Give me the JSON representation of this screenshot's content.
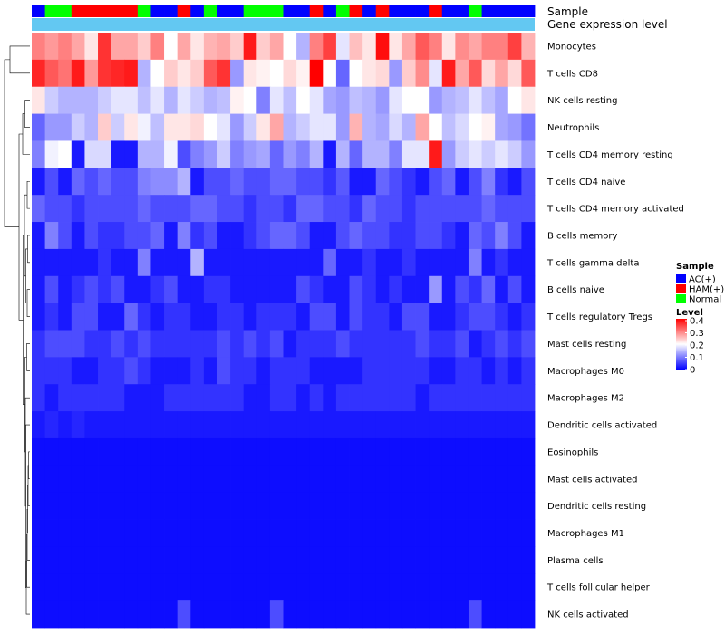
{
  "chart_data": {
    "type": "heatmap",
    "title": "",
    "clustering": "rows",
    "value_range": [
      0,
      0.4
    ],
    "annotation_labels": [
      "Sample",
      "Gene expression level"
    ],
    "annotation_colors": {
      "AC(+)": "#0000ff",
      "HAM(+)": "#ff0000",
      "Normal": "#00ff00"
    },
    "gene_expression_level_color": "#63c8f2",
    "sample_groups": [
      "AC(+)",
      "Normal",
      "Normal",
      "HAM(+)",
      "HAM(+)",
      "HAM(+)",
      "HAM(+)",
      "HAM(+)",
      "Normal",
      "AC(+)",
      "AC(+)",
      "HAM(+)",
      "AC(+)",
      "Normal",
      "AC(+)",
      "AC(+)",
      "Normal",
      "Normal",
      "Normal",
      "AC(+)",
      "AC(+)",
      "HAM(+)",
      "AC(+)",
      "Normal",
      "HAM(+)",
      "AC(+)",
      "HAM(+)",
      "AC(+)",
      "AC(+)",
      "AC(+)",
      "HAM(+)",
      "AC(+)",
      "AC(+)",
      "Normal",
      "AC(+)",
      "AC(+)",
      "AC(+)",
      "AC(+)"
    ],
    "row_labels": [
      "Monocytes",
      "T cells CD8",
      "NK cells resting",
      "Neutrophils",
      "T cells CD4 memory resting",
      "T cells CD4 naive",
      "T cells CD4 memory activated",
      "B cells memory",
      "T cells gamma delta",
      "B cells naive",
      "T cells regulatory  Tregs",
      "Mast cells resting",
      "Macrophages M0",
      "Macrophages M2",
      "Dendritic cells activated",
      "Eosinophils",
      "Mast cells activated",
      "Dendritic cells resting",
      "Macrophages M1",
      "Plasma cells",
      "T cells follicular helper",
      "NK cells activated"
    ],
    "values": [
      [
        0.3,
        0.28,
        0.3,
        0.27,
        0.22,
        0.36,
        0.27,
        0.27,
        0.24,
        0.3,
        0.2,
        0.27,
        0.22,
        0.26,
        0.27,
        0.24,
        0.38,
        0.24,
        0.27,
        0.2,
        0.14,
        0.3,
        0.35,
        0.18,
        0.25,
        0.22,
        0.39,
        0.22,
        0.27,
        0.33,
        0.3,
        0.22,
        0.29,
        0.27,
        0.3,
        0.3,
        0.35,
        0.26
      ],
      [
        0.37,
        0.33,
        0.31,
        0.38,
        0.28,
        0.36,
        0.37,
        0.38,
        0.14,
        0.2,
        0.24,
        0.22,
        0.24,
        0.33,
        0.36,
        0.12,
        0.22,
        0.21,
        0.2,
        0.23,
        0.21,
        0.4,
        0.2,
        0.08,
        0.2,
        0.22,
        0.23,
        0.12,
        0.24,
        0.29,
        0.18,
        0.38,
        0.27,
        0.33,
        0.23,
        0.27,
        0.23,
        0.33
      ],
      [
        0.22,
        0.16,
        0.14,
        0.14,
        0.14,
        0.16,
        0.18,
        0.18,
        0.15,
        0.18,
        0.14,
        0.18,
        0.16,
        0.14,
        0.15,
        0.21,
        0.2,
        0.1,
        0.18,
        0.15,
        0.2,
        0.18,
        0.13,
        0.12,
        0.15,
        0.14,
        0.12,
        0.18,
        0.2,
        0.2,
        0.12,
        0.14,
        0.15,
        0.18,
        0.15,
        0.13,
        0.2,
        0.22
      ],
      [
        0.08,
        0.12,
        0.12,
        0.16,
        0.14,
        0.24,
        0.16,
        0.22,
        0.19,
        0.15,
        0.22,
        0.22,
        0.23,
        0.2,
        0.18,
        0.12,
        0.16,
        0.22,
        0.27,
        0.14,
        0.16,
        0.18,
        0.18,
        0.12,
        0.26,
        0.14,
        0.13,
        0.17,
        0.14,
        0.27,
        0.2,
        0.15,
        0.17,
        0.2,
        0.21,
        0.13,
        0.12,
        0.09
      ],
      [
        0.1,
        0.19,
        0.2,
        0.02,
        0.17,
        0.17,
        0.02,
        0.02,
        0.14,
        0.14,
        0.19,
        0.06,
        0.1,
        0.12,
        0.16,
        0.1,
        0.12,
        0.13,
        0.08,
        0.12,
        0.1,
        0.14,
        0.02,
        0.14,
        0.08,
        0.14,
        0.14,
        0.1,
        0.18,
        0.18,
        0.38,
        0.12,
        0.16,
        0.18,
        0.16,
        0.18,
        0.16,
        0.12
      ],
      [
        0.02,
        0.06,
        0.02,
        0.08,
        0.06,
        0.08,
        0.06,
        0.06,
        0.1,
        0.11,
        0.11,
        0.14,
        0.02,
        0.06,
        0.06,
        0.08,
        0.06,
        0.06,
        0.08,
        0.08,
        0.06,
        0.06,
        0.04,
        0.07,
        0.02,
        0.02,
        0.08,
        0.06,
        0.04,
        0.02,
        0.06,
        0.08,
        0.02,
        0.06,
        0.1,
        0.04,
        0.02,
        0.06
      ],
      [
        0.08,
        0.06,
        0.06,
        0.04,
        0.06,
        0.06,
        0.06,
        0.06,
        0.08,
        0.06,
        0.06,
        0.06,
        0.08,
        0.08,
        0.06,
        0.06,
        0.04,
        0.06,
        0.06,
        0.04,
        0.08,
        0.08,
        0.06,
        0.06,
        0.04,
        0.08,
        0.06,
        0.06,
        0.04,
        0.06,
        0.06,
        0.06,
        0.06,
        0.06,
        0.08,
        0.06,
        0.06,
        0.06
      ],
      [
        0.02,
        0.1,
        0.06,
        0.02,
        0.06,
        0.04,
        0.04,
        0.06,
        0.06,
        0.08,
        0.02,
        0.1,
        0.04,
        0.06,
        0.02,
        0.02,
        0.04,
        0.06,
        0.08,
        0.08,
        0.06,
        0.02,
        0.02,
        0.06,
        0.08,
        0.06,
        0.06,
        0.04,
        0.04,
        0.06,
        0.06,
        0.04,
        0.02,
        0.08,
        0.06,
        0.1,
        0.06,
        0.02
      ],
      [
        0.02,
        0.02,
        0.02,
        0.02,
        0.02,
        0.04,
        0.02,
        0.02,
        0.1,
        0.02,
        0.02,
        0.02,
        0.14,
        0.02,
        0.02,
        0.02,
        0.02,
        0.02,
        0.02,
        0.02,
        0.02,
        0.02,
        0.08,
        0.02,
        0.02,
        0.04,
        0.02,
        0.02,
        0.04,
        0.02,
        0.02,
        0.02,
        0.02,
        0.1,
        0.02,
        0.04,
        0.02,
        0.02
      ],
      [
        0.02,
        0.06,
        0.02,
        0.04,
        0.06,
        0.04,
        0.06,
        0.02,
        0.02,
        0.04,
        0.06,
        0.02,
        0.02,
        0.04,
        0.04,
        0.02,
        0.02,
        0.02,
        0.02,
        0.02,
        0.06,
        0.04,
        0.02,
        0.02,
        0.06,
        0.04,
        0.02,
        0.04,
        0.02,
        0.02,
        0.12,
        0.02,
        0.06,
        0.04,
        0.08,
        0.02,
        0.06,
        0.02
      ],
      [
        0.02,
        0.04,
        0.02,
        0.06,
        0.06,
        0.02,
        0.02,
        0.08,
        0.04,
        0.02,
        0.04,
        0.04,
        0.02,
        0.02,
        0.04,
        0.04,
        0.02,
        0.04,
        0.04,
        0.04,
        0.02,
        0.06,
        0.06,
        0.02,
        0.06,
        0.04,
        0.04,
        0.02,
        0.06,
        0.06,
        0.02,
        0.02,
        0.04,
        0.06,
        0.06,
        0.04,
        0.02,
        0.04
      ],
      [
        0.04,
        0.06,
        0.06,
        0.06,
        0.04,
        0.04,
        0.06,
        0.04,
        0.06,
        0.04,
        0.04,
        0.04,
        0.04,
        0.04,
        0.06,
        0.04,
        0.06,
        0.04,
        0.06,
        0.02,
        0.04,
        0.04,
        0.04,
        0.06,
        0.04,
        0.04,
        0.04,
        0.04,
        0.04,
        0.06,
        0.04,
        0.04,
        0.06,
        0.02,
        0.04,
        0.06,
        0.04,
        0.06
      ],
      [
        0.04,
        0.04,
        0.04,
        0.02,
        0.02,
        0.04,
        0.04,
        0.06,
        0.04,
        0.02,
        0.02,
        0.02,
        0.04,
        0.02,
        0.06,
        0.04,
        0.04,
        0.02,
        0.04,
        0.04,
        0.04,
        0.02,
        0.02,
        0.02,
        0.02,
        0.04,
        0.04,
        0.04,
        0.04,
        0.04,
        0.02,
        0.02,
        0.04,
        0.04,
        0.02,
        0.04,
        0.02,
        0.04
      ],
      [
        0.04,
        0.02,
        0.04,
        0.04,
        0.04,
        0.04,
        0.04,
        0.02,
        0.02,
        0.02,
        0.04,
        0.04,
        0.04,
        0.04,
        0.04,
        0.04,
        0.02,
        0.02,
        0.04,
        0.04,
        0.02,
        0.04,
        0.02,
        0.04,
        0.04,
        0.04,
        0.04,
        0.04,
        0.04,
        0.02,
        0.04,
        0.04,
        0.04,
        0.04,
        0.04,
        0.04,
        0.04,
        0.04
      ],
      [
        0.02,
        0.03,
        0.02,
        0.03,
        0.02,
        0.02,
        0.02,
        0.02,
        0.02,
        0.02,
        0.02,
        0.02,
        0.02,
        0.02,
        0.02,
        0.02,
        0.02,
        0.02,
        0.02,
        0.02,
        0.02,
        0.02,
        0.02,
        0.02,
        0.02,
        0.02,
        0.02,
        0.02,
        0.02,
        0.02,
        0.02,
        0.02,
        0.02,
        0.02,
        0.02,
        0.02,
        0.02,
        0.02
      ],
      [
        0.01,
        0.01,
        0.01,
        0.01,
        0.01,
        0.01,
        0.01,
        0.01,
        0.01,
        0.01,
        0.01,
        0.01,
        0.01,
        0.01,
        0.01,
        0.01,
        0.01,
        0.01,
        0.01,
        0.01,
        0.01,
        0.01,
        0.01,
        0.01,
        0.01,
        0.01,
        0.01,
        0.01,
        0.01,
        0.01,
        0.01,
        0.01,
        0.01,
        0.01,
        0.01,
        0.01,
        0.01,
        0.01
      ],
      [
        0.01,
        0.01,
        0.01,
        0.01,
        0.01,
        0.01,
        0.01,
        0.01,
        0.01,
        0.01,
        0.01,
        0.01,
        0.01,
        0.01,
        0.01,
        0.01,
        0.01,
        0.01,
        0.01,
        0.01,
        0.01,
        0.01,
        0.01,
        0.01,
        0.01,
        0.01,
        0.01,
        0.01,
        0.01,
        0.01,
        0.01,
        0.01,
        0.01,
        0.01,
        0.01,
        0.01,
        0.01,
        0.01
      ],
      [
        0.01,
        0.01,
        0.01,
        0.01,
        0.01,
        0.01,
        0.01,
        0.01,
        0.01,
        0.01,
        0.01,
        0.01,
        0.01,
        0.01,
        0.01,
        0.01,
        0.01,
        0.01,
        0.01,
        0.01,
        0.01,
        0.01,
        0.01,
        0.01,
        0.01,
        0.01,
        0.01,
        0.01,
        0.01,
        0.01,
        0.01,
        0.01,
        0.01,
        0.01,
        0.01,
        0.01,
        0.01,
        0.01
      ],
      [
        0.01,
        0.01,
        0.01,
        0.01,
        0.01,
        0.01,
        0.01,
        0.01,
        0.01,
        0.01,
        0.01,
        0.01,
        0.01,
        0.01,
        0.01,
        0.01,
        0.01,
        0.01,
        0.01,
        0.01,
        0.01,
        0.01,
        0.01,
        0.01,
        0.01,
        0.01,
        0.01,
        0.01,
        0.01,
        0.01,
        0.01,
        0.01,
        0.01,
        0.01,
        0.01,
        0.01,
        0.01,
        0.01
      ],
      [
        0.01,
        0.01,
        0.01,
        0.01,
        0.01,
        0.01,
        0.01,
        0.01,
        0.01,
        0.01,
        0.01,
        0.01,
        0.01,
        0.01,
        0.01,
        0.01,
        0.01,
        0.01,
        0.01,
        0.01,
        0.01,
        0.01,
        0.01,
        0.01,
        0.01,
        0.01,
        0.01,
        0.01,
        0.01,
        0.01,
        0.01,
        0.01,
        0.01,
        0.01,
        0.01,
        0.01,
        0.01,
        0.01
      ],
      [
        0.01,
        0.01,
        0.01,
        0.01,
        0.01,
        0.01,
        0.01,
        0.01,
        0.01,
        0.01,
        0.01,
        0.01,
        0.01,
        0.01,
        0.01,
        0.01,
        0.01,
        0.01,
        0.01,
        0.01,
        0.01,
        0.01,
        0.01,
        0.01,
        0.01,
        0.01,
        0.01,
        0.01,
        0.01,
        0.01,
        0.01,
        0.01,
        0.01,
        0.01,
        0.01,
        0.01,
        0.01,
        0.01
      ],
      [
        0.01,
        0.01,
        0.01,
        0.01,
        0.01,
        0.01,
        0.01,
        0.01,
        0.01,
        0.01,
        0.01,
        0.06,
        0.01,
        0.01,
        0.01,
        0.01,
        0.01,
        0.01,
        0.06,
        0.01,
        0.01,
        0.01,
        0.01,
        0.01,
        0.01,
        0.01,
        0.01,
        0.01,
        0.01,
        0.01,
        0.01,
        0.01,
        0.01,
        0.06,
        0.01,
        0.01,
        0.01,
        0.01
      ]
    ],
    "legend": {
      "sample_title": "Sample",
      "sample_entries": [
        "AC(+)",
        "HAM(+)",
        "Normal"
      ],
      "level_title": "Level",
      "level_ticks": [
        "0.4",
        "0.3",
        "0.2",
        "0.1",
        "0"
      ],
      "placement": "right"
    },
    "color_scale": {
      "low": "#0000ff",
      "mid": "#ffffff",
      "high": "#ff0000",
      "domain": [
        0,
        0.2,
        0.4
      ]
    }
  }
}
